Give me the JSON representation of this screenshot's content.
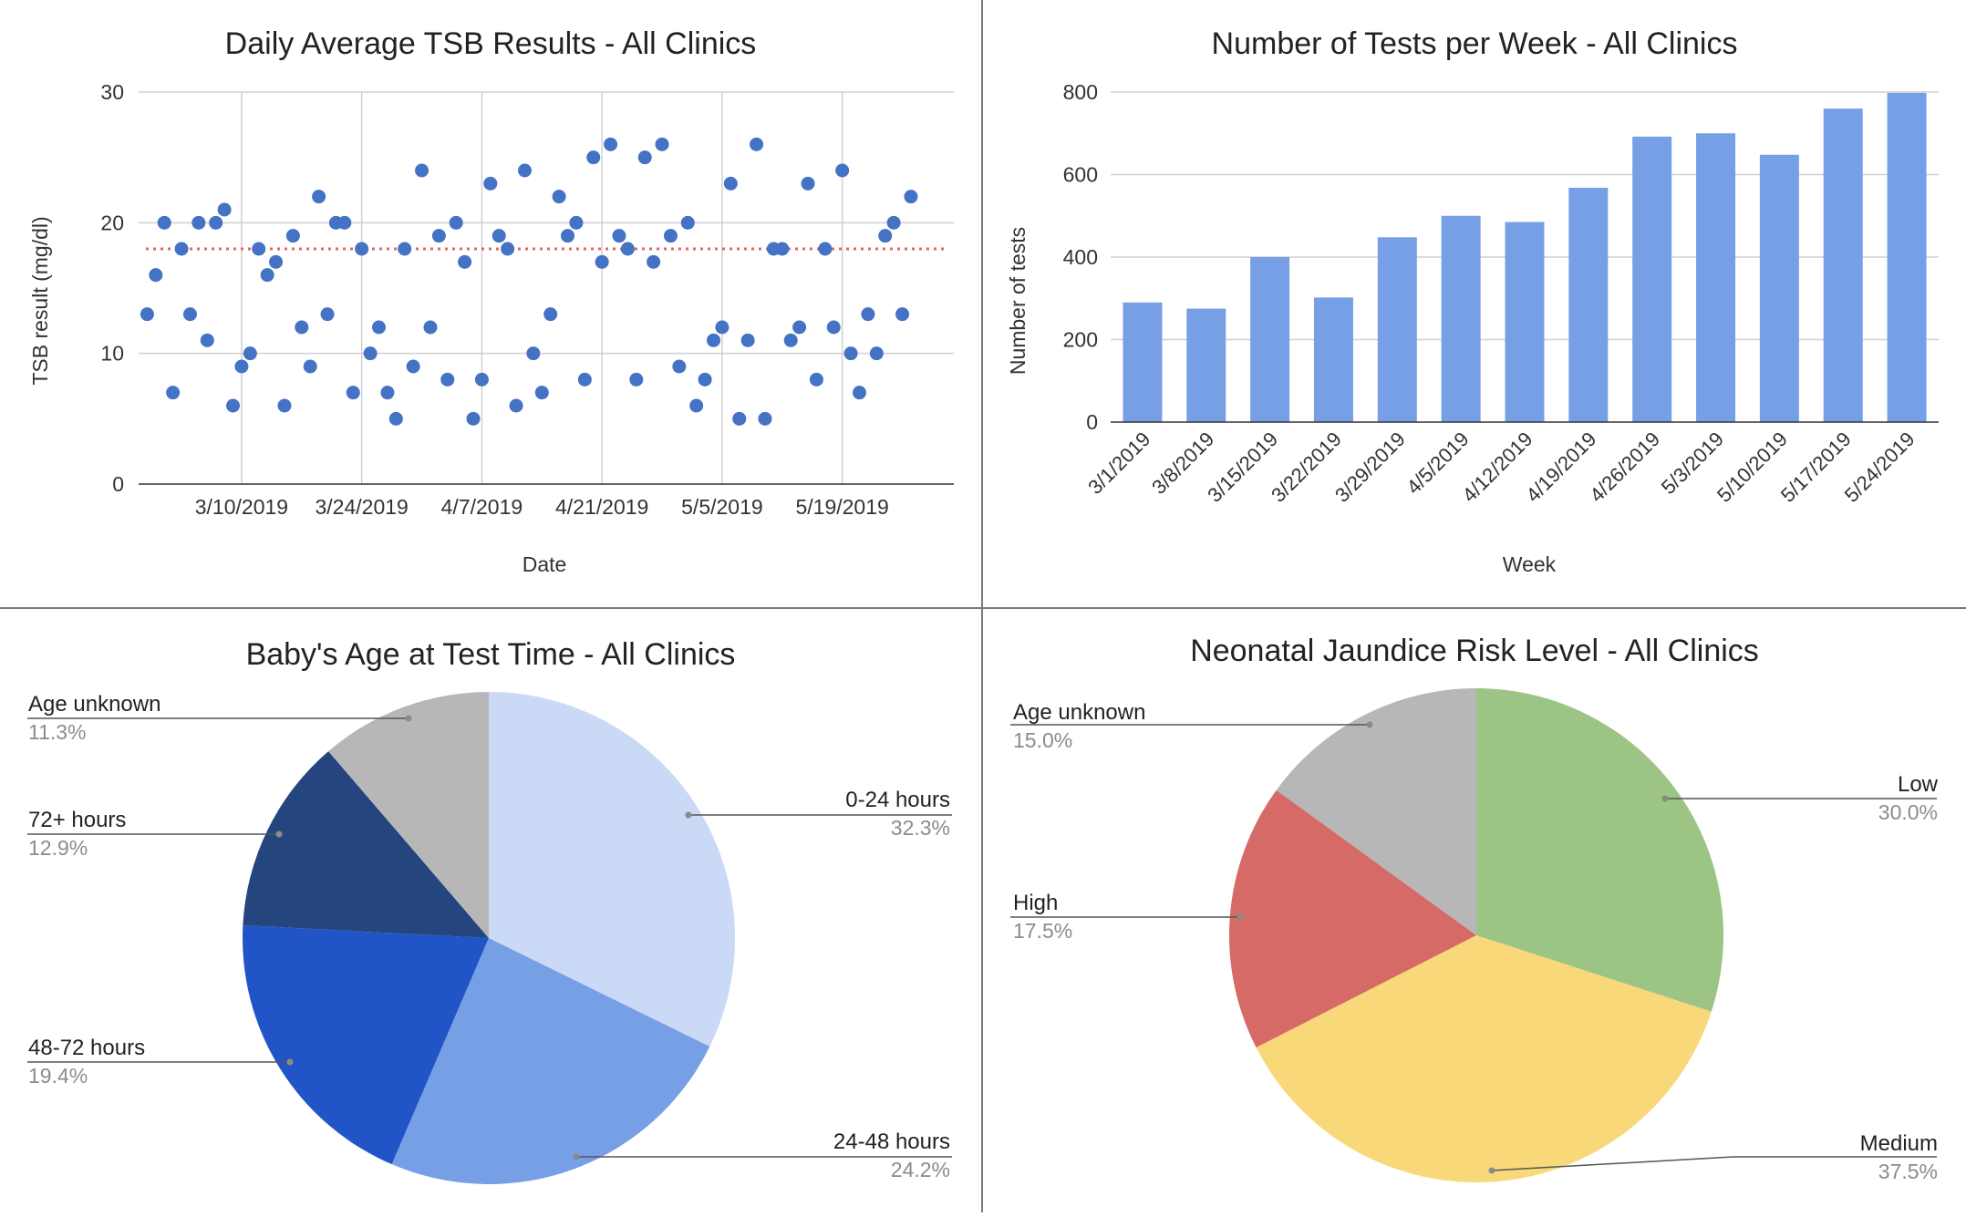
{
  "charts": [
    {
      "id": "scatter",
      "type": "scatter",
      "title": "Daily Average TSB Results - All Clinics",
      "xlabel": "Date",
      "ylabel": "TSB result (mg/dl)",
      "ylim": [
        0,
        30
      ],
      "yticks": [
        0,
        10,
        20,
        30
      ],
      "xlim": [
        "2019-02-26",
        "2019-06-01"
      ],
      "xticks": [
        "3/10/2019",
        "3/24/2019",
        "4/7/2019",
        "4/21/2019",
        "5/5/2019",
        "5/19/2019"
      ],
      "grid": true,
      "color": "#4472c4",
      "reference_line": {
        "value": 18,
        "style": "dotted",
        "color": "#e06666"
      },
      "points": [
        [
          "2019-02-27",
          13
        ],
        [
          "2019-02-28",
          16
        ],
        [
          "2019-03-01",
          20
        ],
        [
          "2019-03-02",
          7
        ],
        [
          "2019-03-03",
          18
        ],
        [
          "2019-03-04",
          13
        ],
        [
          "2019-03-05",
          20
        ],
        [
          "2019-03-06",
          11
        ],
        [
          "2019-03-07",
          20
        ],
        [
          "2019-03-08",
          21
        ],
        [
          "2019-03-09",
          6
        ],
        [
          "2019-03-10",
          9
        ],
        [
          "2019-03-11",
          10
        ],
        [
          "2019-03-12",
          18
        ],
        [
          "2019-03-13",
          16
        ],
        [
          "2019-03-14",
          17
        ],
        [
          "2019-03-15",
          6
        ],
        [
          "2019-03-16",
          19
        ],
        [
          "2019-03-17",
          12
        ],
        [
          "2019-03-18",
          9
        ],
        [
          "2019-03-19",
          22
        ],
        [
          "2019-03-20",
          13
        ],
        [
          "2019-03-21",
          20
        ],
        [
          "2019-03-22",
          20
        ],
        [
          "2019-03-23",
          7
        ],
        [
          "2019-03-24",
          18
        ],
        [
          "2019-03-25",
          10
        ],
        [
          "2019-03-26",
          12
        ],
        [
          "2019-03-27",
          7
        ],
        [
          "2019-03-28",
          5
        ],
        [
          "2019-03-29",
          18
        ],
        [
          "2019-03-30",
          9
        ],
        [
          "2019-03-31",
          24
        ],
        [
          "2019-04-01",
          12
        ],
        [
          "2019-04-02",
          19
        ],
        [
          "2019-04-03",
          8
        ],
        [
          "2019-04-04",
          20
        ],
        [
          "2019-04-05",
          17
        ],
        [
          "2019-04-06",
          5
        ],
        [
          "2019-04-07",
          8
        ],
        [
          "2019-04-08",
          23
        ],
        [
          "2019-04-09",
          19
        ],
        [
          "2019-04-10",
          18
        ],
        [
          "2019-04-11",
          6
        ],
        [
          "2019-04-12",
          24
        ],
        [
          "2019-04-13",
          10
        ],
        [
          "2019-04-14",
          7
        ],
        [
          "2019-04-15",
          13
        ],
        [
          "2019-04-16",
          22
        ],
        [
          "2019-04-17",
          19
        ],
        [
          "2019-04-18",
          20
        ],
        [
          "2019-04-19",
          8
        ],
        [
          "2019-04-20",
          25
        ],
        [
          "2019-04-21",
          17
        ],
        [
          "2019-04-22",
          26
        ],
        [
          "2019-04-23",
          19
        ],
        [
          "2019-04-24",
          18
        ],
        [
          "2019-04-25",
          8
        ],
        [
          "2019-04-26",
          25
        ],
        [
          "2019-04-27",
          17
        ],
        [
          "2019-04-28",
          26
        ],
        [
          "2019-04-29",
          19
        ],
        [
          "2019-04-30",
          9
        ],
        [
          "2019-05-01",
          20
        ],
        [
          "2019-05-02",
          6
        ],
        [
          "2019-05-03",
          8
        ],
        [
          "2019-05-04",
          11
        ],
        [
          "2019-05-05",
          12
        ],
        [
          "2019-05-06",
          23
        ],
        [
          "2019-05-07",
          5
        ],
        [
          "2019-05-08",
          11
        ],
        [
          "2019-05-09",
          26
        ],
        [
          "2019-05-10",
          5
        ],
        [
          "2019-05-11",
          18
        ],
        [
          "2019-05-12",
          18
        ],
        [
          "2019-05-13",
          11
        ],
        [
          "2019-05-14",
          12
        ],
        [
          "2019-05-15",
          23
        ],
        [
          "2019-05-16",
          8
        ],
        [
          "2019-05-17",
          18
        ],
        [
          "2019-05-18",
          12
        ],
        [
          "2019-05-19",
          24
        ],
        [
          "2019-05-20",
          10
        ],
        [
          "2019-05-21",
          7
        ],
        [
          "2019-05-22",
          13
        ],
        [
          "2019-05-23",
          10
        ],
        [
          "2019-05-24",
          19
        ],
        [
          "2019-05-25",
          20
        ],
        [
          "2019-05-26",
          13
        ],
        [
          "2019-05-27",
          22
        ]
      ]
    },
    {
      "id": "bar",
      "type": "bar",
      "title": "Number of Tests per Week - All Clinics",
      "xlabel": "Week",
      "ylabel": "Number of tests",
      "ylim": [
        0,
        800
      ],
      "yticks": [
        0,
        200,
        400,
        600,
        800
      ],
      "grid": true,
      "color": "#779fe5",
      "categories": [
        "3/1/2019",
        "3/8/2019",
        "3/15/2019",
        "3/22/2019",
        "3/29/2019",
        "4/5/2019",
        "4/12/2019",
        "4/19/2019",
        "4/26/2019",
        "5/3/2019",
        "5/10/2019",
        "5/17/2019",
        "5/24/2019"
      ],
      "values": [
        290,
        275,
        400,
        302,
        448,
        500,
        485,
        568,
        692,
        700,
        648,
        760,
        798
      ]
    },
    {
      "id": "pie-age",
      "type": "pie",
      "title": "Baby's Age at Test Time - All Clinics",
      "slices": [
        {
          "label": "0-24 hours",
          "value": 32.3,
          "pct": "32.3%",
          "color": "#cad9f5"
        },
        {
          "label": "24-48 hours",
          "value": 24.2,
          "pct": "24.2%",
          "color": "#779fe5"
        },
        {
          "label": "48-72 hours",
          "value": 19.4,
          "pct": "19.4%",
          "color": "#2155c7"
        },
        {
          "label": "72+ hours",
          "value": 12.9,
          "pct": "12.9%",
          "color": "#24457e"
        },
        {
          "label": "Age unknown",
          "value": 11.3,
          "pct": "11.3%",
          "color": "#b7b7b7"
        }
      ]
    },
    {
      "id": "pie-risk",
      "type": "pie",
      "title": "Neonatal Jaundice Risk Level - All Clinics",
      "slices": [
        {
          "label": "Low",
          "value": 30.0,
          "pct": "30.0%",
          "color": "#9cc485"
        },
        {
          "label": "Medium",
          "value": 37.5,
          "pct": "37.5%",
          "color": "#f8d878"
        },
        {
          "label": "High",
          "value": 17.5,
          "pct": "17.5%",
          "color": "#d66a66"
        },
        {
          "label": "Age unknown",
          "value": 15.0,
          "pct": "15.0%",
          "color": "#b7b7b7"
        }
      ]
    }
  ]
}
